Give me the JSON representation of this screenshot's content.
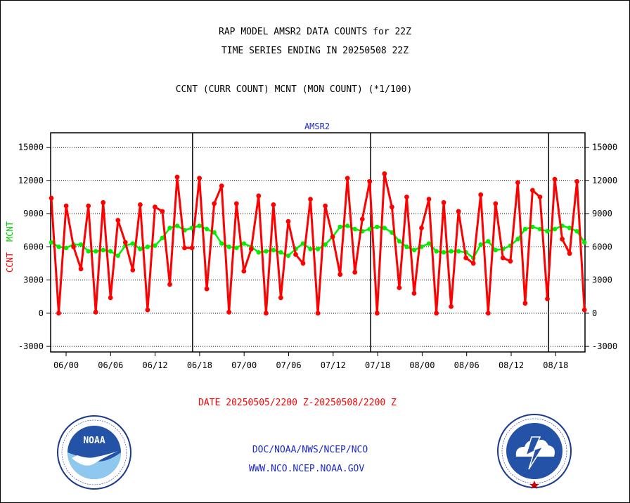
{
  "header": {
    "title": "RAP MODEL AMSR2 DATA COUNTS for 22Z",
    "subtitle": "TIME SERIES ENDING IN 20250508 22Z",
    "legend_line": "CCNT (CURR COUNT) MCNT (MON COUNT) (*1/100)"
  },
  "footer": {
    "date_range": "DATE 20250505/2200 Z-20250508/2200 Z",
    "org_line": "DOC/NOAA/NWS/NCEP/NCO",
    "website": "WWW.NCO.NCEP.NOAA.GOV"
  },
  "colors": {
    "ccnt": "#ff0000",
    "mcnt": "#00ee00",
    "text_blue": "#1a2ad0",
    "axis": "#000000"
  },
  "chart_data": {
    "type": "line",
    "title": "AMSR2",
    "ylabel_ccnt": "CCNT",
    "ylabel_mcnt": "MCNT",
    "ylim": [
      -3500,
      16300
    ],
    "yticks": [
      -3000,
      0,
      3000,
      6000,
      9000,
      12000,
      15000
    ],
    "ytick_labels": [
      "-3000",
      "0",
      "3000",
      "6000",
      "9000",
      "12000",
      "15000"
    ],
    "xticks": [
      "06/00",
      "06/06",
      "06/12",
      "06/18",
      "07/00",
      "07/06",
      "07/12",
      "07/18",
      "08/00",
      "08/06",
      "08/12",
      "08/18"
    ],
    "grid": true,
    "day_separators_after_tick": [
      "06/18",
      "07/18",
      "08/18"
    ],
    "series": [
      {
        "name": "CCNT",
        "color": "#ff0000",
        "values": [
          10400,
          0,
          9700,
          6000,
          4000,
          9700,
          100,
          10000,
          1400,
          8400,
          6400,
          3900,
          9800,
          300,
          9600,
          9200,
          2600,
          12300,
          5900,
          5900,
          12200,
          2200,
          9900,
          11500,
          100,
          9900,
          3800,
          5800,
          10600,
          0,
          9800,
          1400,
          8300,
          5300,
          4500,
          10300,
          0,
          9700,
          6900,
          3500,
          12200,
          3700,
          8500,
          11900,
          0,
          12600,
          9600,
          2300,
          10500,
          1800,
          7700,
          10300,
          0,
          10000,
          600,
          9200,
          5000,
          4500,
          10700,
          0,
          9900,
          5000,
          4700,
          11800,
          900,
          11100,
          10500,
          1300,
          12100,
          6700,
          5400,
          11900,
          300
        ]
      },
      {
        "name": "MCNT",
        "color": "#00ee00",
        "values": [
          6400,
          6000,
          5900,
          6200,
          6200,
          5600,
          5600,
          5700,
          5600,
          5200,
          6100,
          6300,
          5800,
          6000,
          6100,
          6800,
          7700,
          7900,
          7500,
          7700,
          7900,
          7600,
          7300,
          6300,
          6000,
          5900,
          6300,
          6000,
          5500,
          5600,
          5700,
          5500,
          5200,
          5800,
          6300,
          5800,
          5800,
          6200,
          6900,
          7800,
          7900,
          7600,
          7400,
          7600,
          7800,
          7700,
          7300,
          6500,
          6000,
          5700,
          6000,
          6300,
          5600,
          5500,
          5600,
          5600,
          5500,
          5000,
          6200,
          6500,
          5700,
          5800,
          6100,
          6700,
          7600,
          7800,
          7600,
          7400,
          7600,
          7900,
          7700,
          7400,
          6400
        ]
      }
    ]
  }
}
